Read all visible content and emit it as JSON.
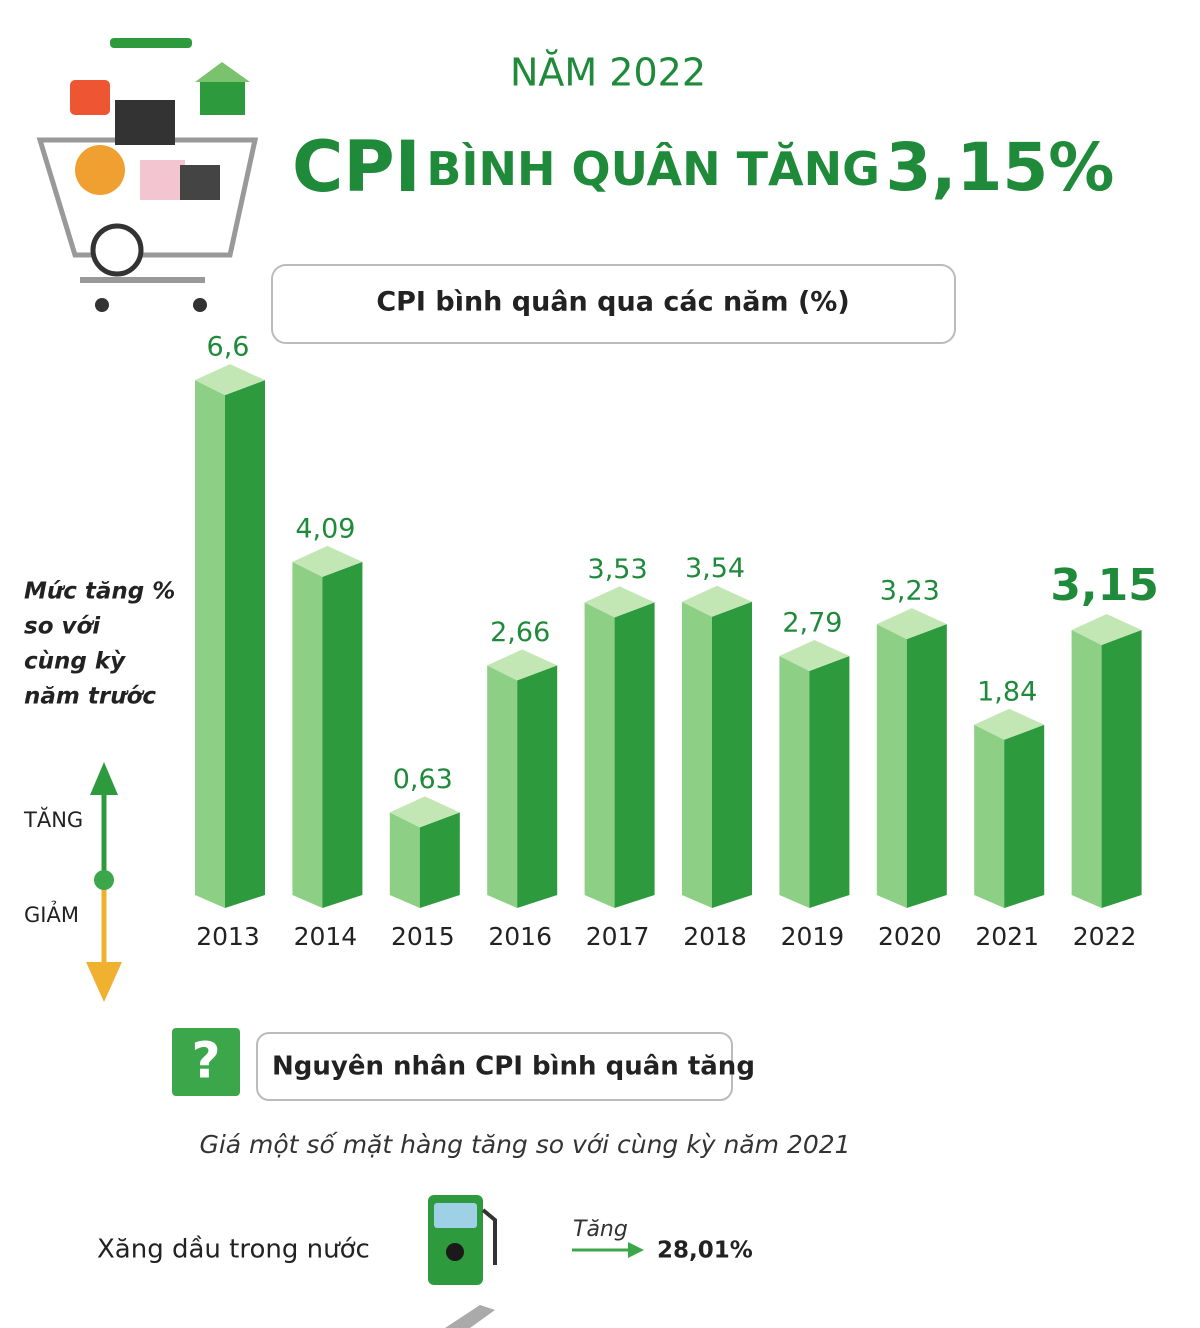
{
  "header": {
    "year_line": "NĂM 2022",
    "title_cpi": "CPI",
    "title_middle": "BÌNH QUÂN TĂNG",
    "title_value": "3,15%"
  },
  "chart_data": {
    "type": "bar",
    "title": "CPI bình quân qua các năm (%)",
    "y_label": [
      "Mức tăng %",
      "so với",
      "cùng kỳ",
      "năm trước"
    ],
    "categories": [
      "2013",
      "2014",
      "2015",
      "2016",
      "2017",
      "2018",
      "2019",
      "2020",
      "2021",
      "2022"
    ],
    "values": [
      6.6,
      4.09,
      0.63,
      2.66,
      3.53,
      3.54,
      2.79,
      3.23,
      1.84,
      3.15
    ],
    "value_labels": [
      "6,6",
      "4,09",
      "0,63",
      "2,66",
      "3,53",
      "3,54",
      "2,79",
      "3,23",
      "1,84",
      "3,15"
    ],
    "color": "#2e9a3e",
    "legend": {
      "up": "TĂNG",
      "down": "GIẢM"
    }
  },
  "causes": {
    "title": "Nguyên nhân CPI bình quân tăng",
    "subtitle": "Giá một số mặt hàng tăng so với cùng kỳ năm 2021",
    "items": [
      {
        "name": "Xăng dầu trong nước",
        "direction": "Tăng",
        "change": "28,01%"
      }
    ]
  }
}
